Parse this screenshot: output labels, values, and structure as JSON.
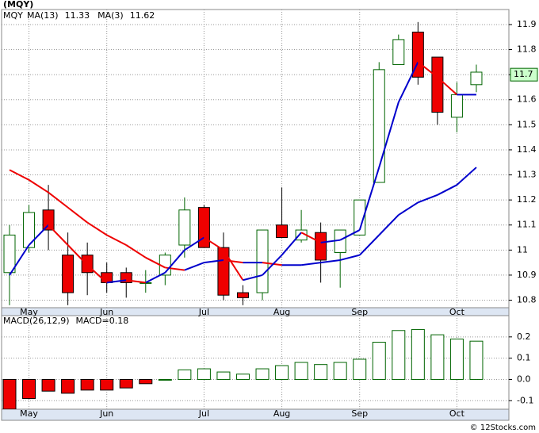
{
  "chart_data": [
    {
      "type": "candlestick",
      "title": "(MQY)",
      "ticker_label": "MQY",
      "categories": [
        null,
        "May",
        null,
        null,
        null,
        "Jun",
        null,
        null,
        null,
        null,
        "Jul",
        null,
        null,
        null,
        "Aug",
        null,
        null,
        null,
        "Sep",
        null,
        null,
        null,
        null,
        "Oct",
        null
      ],
      "open": [
        10.91,
        11.01,
        11.16,
        10.98,
        10.98,
        10.91,
        10.91,
        10.87,
        10.9,
        11.02,
        11.17,
        11.01,
        10.83,
        10.83,
        11.1,
        11.04,
        11.07,
        10.99,
        11.06,
        11.27,
        11.74,
        11.87,
        11.77,
        11.53,
        11.66
      ],
      "high": [
        11.1,
        11.18,
        11.26,
        11.07,
        11.03,
        10.95,
        10.93,
        10.92,
        10.99,
        11.21,
        11.18,
        11.07,
        10.86,
        11.08,
        11.25,
        11.16,
        11.11,
        11.08,
        11.2,
        11.75,
        11.86,
        11.91,
        11.77,
        11.67,
        11.74
      ],
      "low": [
        10.78,
        10.99,
        11.0,
        10.78,
        10.82,
        10.83,
        10.81,
        10.83,
        10.86,
        10.97,
        11.01,
        10.8,
        10.78,
        10.8,
        11.05,
        11.03,
        10.87,
        10.85,
        11.06,
        11.27,
        11.74,
        11.66,
        11.5,
        11.47,
        11.63
      ],
      "close": [
        11.06,
        11.15,
        11.08,
        10.83,
        10.91,
        10.87,
        10.87,
        10.87,
        10.98,
        11.16,
        11.01,
        10.82,
        10.81,
        11.08,
        11.05,
        11.08,
        10.96,
        11.08,
        11.2,
        11.72,
        11.84,
        11.69,
        11.55,
        11.62,
        11.71
      ],
      "up_color": "#006400",
      "down_color": "#ee0000",
      "moving_averages": [
        {
          "name": "MA(13)",
          "value_label": "11.33",
          "values": [
            11.32,
            11.28,
            11.23,
            11.17,
            11.11,
            11.06,
            11.02,
            10.97,
            10.93,
            10.92,
            10.95,
            10.96,
            10.95,
            10.95,
            10.94,
            10.94,
            10.95,
            10.96,
            10.98,
            11.06,
            11.14,
            11.19,
            11.22,
            11.26,
            11.33
          ]
        },
        {
          "name": "MA(3)",
          "value_label": "11.62",
          "values": [
            10.9,
            11.02,
            11.1,
            11.02,
            10.94,
            10.87,
            10.88,
            10.87,
            10.91,
            11.0,
            11.05,
            11.0,
            10.88,
            10.9,
            10.98,
            11.07,
            11.03,
            11.04,
            11.08,
            11.33,
            11.59,
            11.75,
            11.69,
            11.62,
            11.62
          ]
        }
      ],
      "ma_up_color": "#0000cc",
      "ma_down_color": "#ee0000",
      "legend_color": "#0000cc",
      "last_price": 11.7,
      "last_price_color": "#ccffcc",
      "ylim": [
        10.77,
        11.96
      ],
      "yticks": [
        10.8,
        10.9,
        11.0,
        11.1,
        11.2,
        11.3,
        11.4,
        11.5,
        11.6,
        11.7,
        11.8,
        11.9
      ],
      "grid": true
    },
    {
      "type": "bar",
      "title": "MACD(26,12,9)",
      "value_text": "MACD=0.18",
      "categories": [
        null,
        "May",
        null,
        null,
        null,
        "Jun",
        null,
        null,
        null,
        null,
        "Jul",
        null,
        null,
        null,
        "Aug",
        null,
        null,
        null,
        "Sep",
        null,
        null,
        null,
        null,
        "Oct",
        null
      ],
      "values": [
        -0.14,
        -0.09,
        -0.055,
        -0.065,
        -0.05,
        -0.05,
        -0.04,
        -0.02,
        0.0,
        0.045,
        0.05,
        0.035,
        0.025,
        0.05,
        0.065,
        0.08,
        0.07,
        0.08,
        0.095,
        0.175,
        0.23,
        0.235,
        0.21,
        0.19,
        0.18
      ],
      "up_color": "#006400",
      "down_color": "#ee0000",
      "legend_color": "#0000cc",
      "ylim": [
        -0.14,
        0.3
      ],
      "yticks": [
        -0.1,
        {
          "value": 0,
          "label": "0.0"
        },
        0.1,
        0.2
      ],
      "grid": true
    }
  ],
  "footer": "© 12Stocks.com"
}
